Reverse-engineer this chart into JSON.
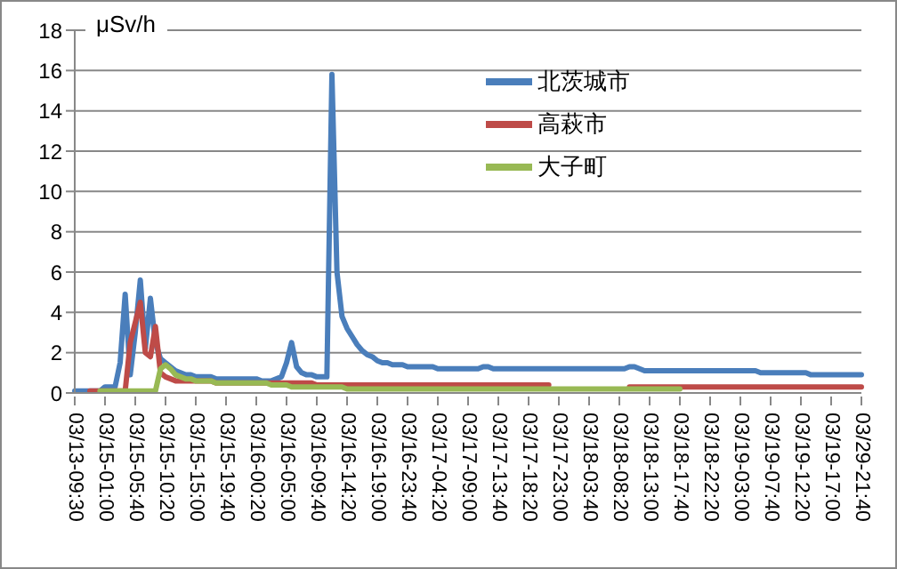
{
  "chart_data": {
    "type": "line",
    "ylabel": "μSv/h",
    "ylim": [
      0,
      18
    ],
    "yticks": [
      0,
      2,
      4,
      6,
      8,
      10,
      12,
      14,
      16,
      18
    ],
    "categories": [
      "03/13-09:30",
      null,
      null,
      null,
      null,
      null,
      "03/15-01:00",
      null,
      null,
      null,
      null,
      null,
      "03/15-05:40",
      null,
      null,
      null,
      null,
      null,
      "03/15-10:20",
      null,
      null,
      null,
      null,
      null,
      "03/15-15:00",
      null,
      null,
      null,
      null,
      null,
      "03/15-19:40",
      null,
      null,
      null,
      null,
      null,
      "03/16-00:20",
      null,
      null,
      null,
      null,
      null,
      "03/16-05:00",
      null,
      null,
      null,
      null,
      null,
      "03/16-09:40",
      null,
      null,
      null,
      null,
      null,
      "03/16-14:20",
      null,
      null,
      null,
      null,
      null,
      "03/16-19:00",
      null,
      null,
      null,
      null,
      null,
      "03/16-23:40",
      null,
      null,
      null,
      null,
      null,
      "03/17-04:20",
      null,
      null,
      null,
      null,
      null,
      "03/17-09:00",
      null,
      null,
      null,
      null,
      null,
      "03/17-13:40",
      null,
      null,
      null,
      null,
      null,
      "03/17-18:20",
      null,
      null,
      null,
      null,
      null,
      "03/17-23:00",
      null,
      null,
      null,
      null,
      null,
      "03/18-03:40",
      null,
      null,
      null,
      null,
      null,
      "03/18-08:20",
      null,
      null,
      null,
      null,
      null,
      "03/18-13:00",
      null,
      null,
      null,
      null,
      null,
      "03/18-17:40",
      null,
      null,
      null,
      null,
      null,
      "03/18-22:20",
      null,
      null,
      null,
      null,
      null,
      "03/19-03:00",
      null,
      null,
      null,
      null,
      null,
      "03/19-07:40",
      null,
      null,
      null,
      null,
      null,
      "03/19-12:20",
      null,
      null,
      null,
      null,
      null,
      "03/19-17:00",
      null,
      null,
      null,
      null,
      null,
      "03/29-21:40"
    ],
    "grid": "y",
    "legend": "top right",
    "marker": "none",
    "line_style": "solid",
    "series": [
      {
        "name": "北茨城市",
        "color": "#4a7ebb",
        "values": [
          0.1,
          0.1,
          0.1,
          0.1,
          0.1,
          0.1,
          0.3,
          0.3,
          0.3,
          1.5,
          4.9,
          0.9,
          3.0,
          5.6,
          2.2,
          4.7,
          2.5,
          1.7,
          1.5,
          1.3,
          1.1,
          1.0,
          0.9,
          0.9,
          0.8,
          0.8,
          0.8,
          0.8,
          0.7,
          0.7,
          0.7,
          0.7,
          0.7,
          0.7,
          0.7,
          0.7,
          0.7,
          0.6,
          0.6,
          0.6,
          0.7,
          0.8,
          1.5,
          2.5,
          1.3,
          1.0,
          0.9,
          0.9,
          0.8,
          0.8,
          0.8,
          15.8,
          6,
          3.8,
          3.2,
          2.8,
          2.4,
          2.1,
          1.9,
          1.8,
          1.6,
          1.5,
          1.5,
          1.4,
          1.4,
          1.4,
          1.3,
          1.3,
          1.3,
          1.3,
          1.3,
          1.3,
          1.2,
          1.2,
          1.2,
          1.2,
          1.2,
          1.2,
          1.2,
          1.2,
          1.2,
          1.3,
          1.3,
          1.2,
          1.2,
          1.2,
          1.2,
          1.2,
          1.2,
          1.2,
          1.2,
          1.2,
          1.2,
          1.2,
          1.2,
          1.2,
          1.2,
          1.2,
          1.2,
          1.2,
          1.2,
          1.2,
          1.2,
          1.2,
          1.2,
          1.2,
          1.2,
          1.2,
          1.2,
          1.2,
          1.3,
          1.3,
          1.2,
          1.1,
          1.1,
          1.1,
          1.1,
          1.1,
          1.1,
          1.1,
          1.1,
          1.1,
          1.1,
          1.1,
          1.1,
          1.1,
          1.1,
          1.1,
          1.1,
          1.1,
          1.1,
          1.1,
          1.1,
          1.1,
          1.1,
          1.1,
          1.0,
          1.0,
          1.0,
          1.0,
          1.0,
          1.0,
          1.0,
          1.0,
          1.0,
          1.0,
          0.9,
          0.9,
          0.9,
          0.9,
          0.9,
          0.9,
          0.9,
          0.9,
          0.9,
          0.9,
          0.9
        ]
      },
      {
        "name": "高萩市",
        "color": "#be4b48",
        "values": [
          null,
          null,
          null,
          0.1,
          0.1,
          0.1,
          0.1,
          0.1,
          0.1,
          0.1,
          0.1,
          2.5,
          3.5,
          4.5,
          2.0,
          1.8,
          3.3,
          1.0,
          0.8,
          0.7,
          0.6,
          0.6,
          0.6,
          0.6,
          0.6,
          0.6,
          0.6,
          0.6,
          0.5,
          0.5,
          0.5,
          0.5,
          0.5,
          0.5,
          0.5,
          0.5,
          0.5,
          0.5,
          0.5,
          0.5,
          0.5,
          0.5,
          0.5,
          0.5,
          0.5,
          0.5,
          0.5,
          0.5,
          0.4,
          0.4,
          0.4,
          0.4,
          0.4,
          0.4,
          0.4,
          0.4,
          0.4,
          0.4,
          0.4,
          0.4,
          0.4,
          0.4,
          0.4,
          0.4,
          0.4,
          0.4,
          0.4,
          0.4,
          0.4,
          0.4,
          0.4,
          0.4,
          0.4,
          0.4,
          0.4,
          0.4,
          0.4,
          0.4,
          0.4,
          0.4,
          0.4,
          0.4,
          0.4,
          0.4,
          0.4,
          0.4,
          0.4,
          0.4,
          0.4,
          0.4,
          0.4,
          0.4,
          0.4,
          0.4,
          0.4,
          null,
          null,
          null,
          null,
          null,
          null,
          null,
          null,
          null,
          null,
          null,
          null,
          null,
          null,
          null,
          0.3,
          0.3,
          0.3,
          0.3,
          0.3,
          0.3,
          0.3,
          0.3,
          0.3,
          0.3,
          0.3,
          0.3,
          0.3,
          0.3,
          0.3,
          0.3,
          0.3,
          0.3,
          0.3,
          0.3,
          0.3,
          0.3,
          0.3,
          0.3,
          0.3,
          0.3,
          0.3,
          0.3,
          0.3,
          0.3,
          0.3,
          0.3,
          0.3,
          0.3,
          0.3,
          0.3,
          0.3,
          0.3,
          0.3,
          0.3,
          0.3,
          0.3,
          0.3,
          0.3,
          0.3,
          0.3,
          0.3
        ]
      },
      {
        "name": "大子町",
        "color": "#98b954",
        "values": [
          null,
          null,
          null,
          null,
          null,
          0.1,
          0.1,
          0.1,
          0.1,
          0.1,
          0.1,
          0.1,
          0.1,
          0.1,
          0.1,
          0.1,
          0.1,
          1.2,
          1.4,
          1.2,
          0.9,
          0.8,
          0.7,
          0.7,
          0.6,
          0.6,
          0.6,
          0.6,
          0.5,
          0.5,
          0.5,
          0.5,
          0.5,
          0.5,
          0.5,
          0.5,
          0.5,
          0.5,
          0.5,
          0.4,
          0.4,
          0.4,
          0.4,
          0.3,
          0.3,
          0.3,
          0.3,
          0.3,
          0.3,
          0.3,
          0.3,
          0.3,
          0.3,
          0.3,
          0.2,
          0.2,
          0.2,
          0.2,
          0.2,
          0.2,
          0.2,
          0.2,
          0.2,
          0.2,
          0.2,
          0.2,
          0.2,
          0.2,
          0.2,
          0.2,
          0.2,
          0.2,
          0.2,
          0.2,
          0.2,
          0.2,
          0.2,
          0.2,
          0.2,
          0.2,
          0.2,
          0.2,
          0.2,
          0.2,
          0.2,
          0.2,
          0.2,
          0.2,
          0.2,
          0.2,
          0.2,
          0.2,
          0.2,
          0.2,
          0.2,
          0.2,
          0.2,
          0.2,
          0.2,
          0.2,
          0.2,
          0.2,
          0.2,
          0.2,
          0.2,
          0.2,
          0.2,
          0.2,
          0.2,
          0.2,
          0.2,
          0.2,
          0.2,
          0.2,
          0.2,
          0.2,
          0.2,
          0.2,
          0.2,
          0.2,
          0.2,
          null,
          null,
          null,
          null,
          null,
          null,
          null,
          null,
          null,
          null,
          null,
          null,
          null,
          null,
          null,
          null,
          null,
          null,
          null,
          null,
          null,
          null,
          null,
          null,
          null,
          null,
          null,
          null,
          null,
          null,
          null,
          null,
          null,
          null,
          null,
          null
        ]
      }
    ]
  }
}
